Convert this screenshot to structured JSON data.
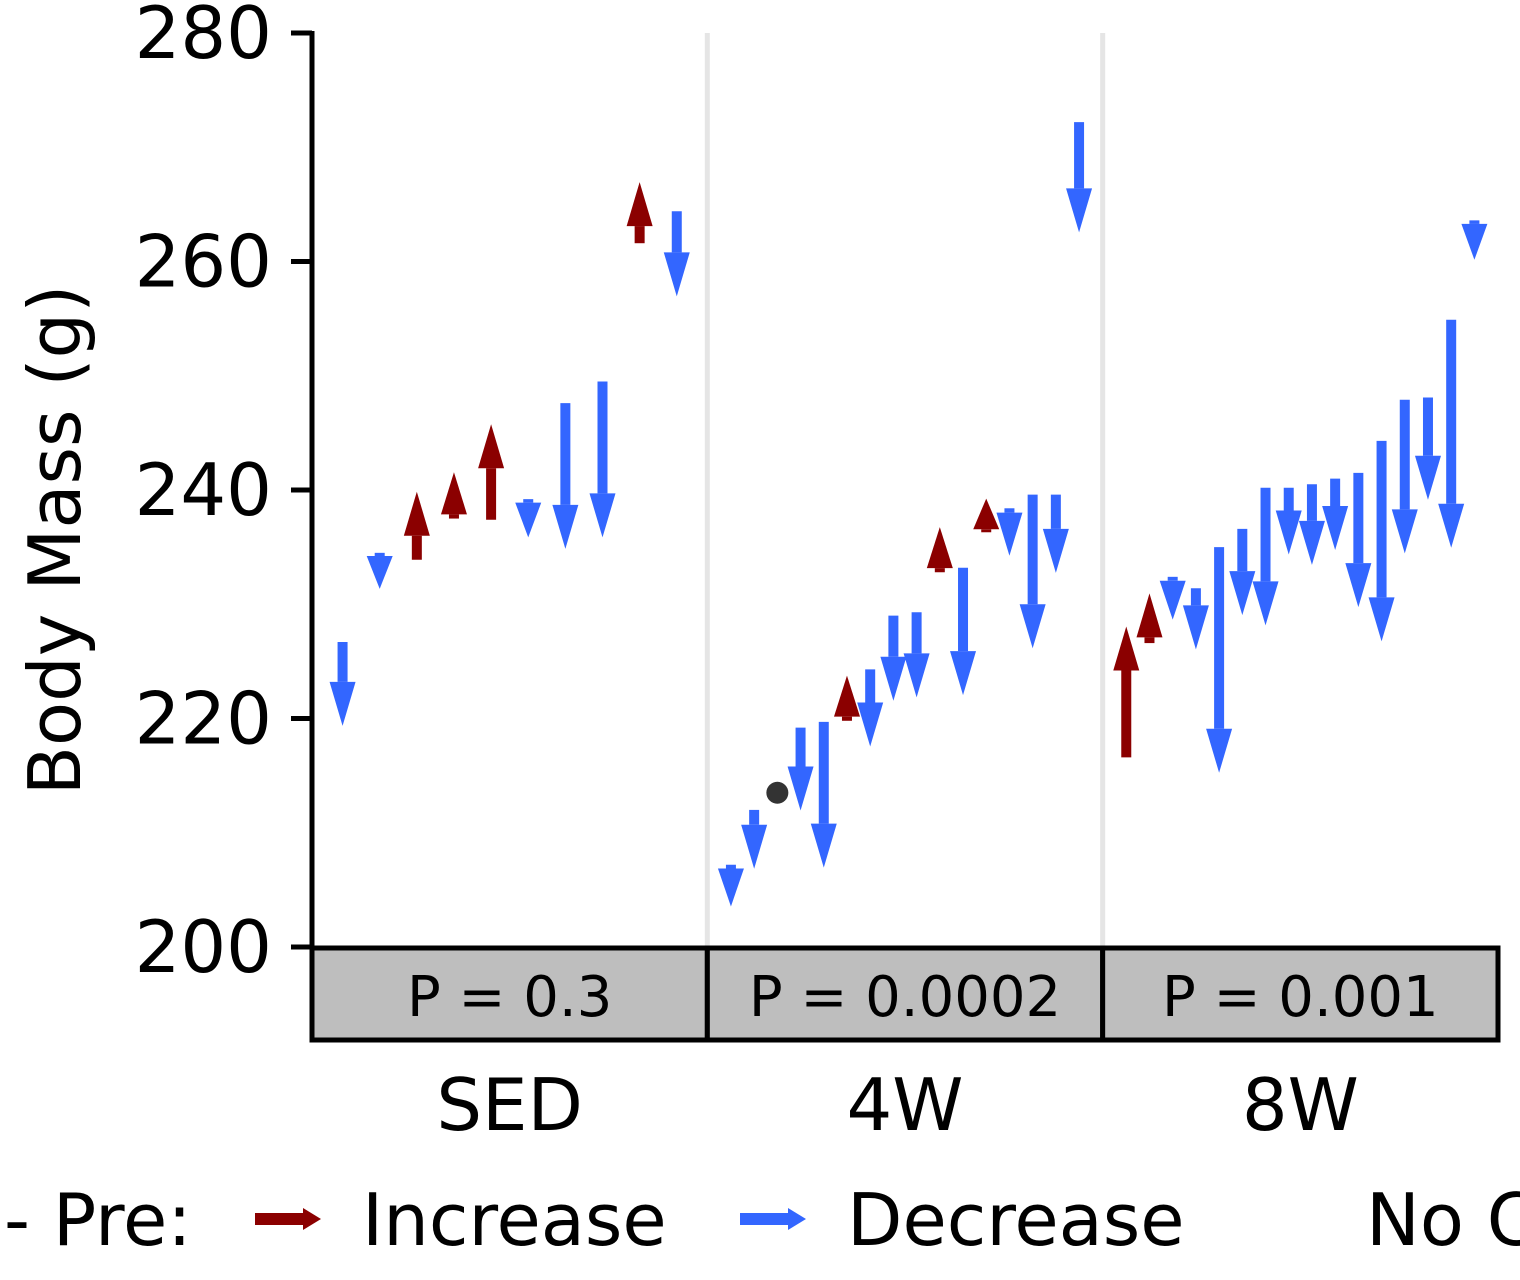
{
  "chart_data": {
    "type": "arrow-plot",
    "ylabel": "Body Mass (g)",
    "ylim": [
      200,
      280
    ],
    "y_ticks": [
      "200",
      "220",
      "240",
      "260",
      "280"
    ],
    "groups": [
      "SED",
      "4W",
      "8W"
    ],
    "p_values": [
      "P = 0.3",
      "P = 0.0002",
      "P = 0.001"
    ],
    "colors": {
      "increase": "#8b0000",
      "decrease": "#3366ff",
      "no_change": "#333333",
      "strip": "#bebebe",
      "divider": "#e5e5e5"
    },
    "legend": {
      "title": "- Pre:",
      "items": [
        {
          "label": "Increase",
          "color": "#8b0000"
        },
        {
          "label": "Decrease",
          "color": "#3366ff"
        },
        {
          "label": "No C",
          "color": "#333333"
        }
      ],
      "placement": "bottom"
    },
    "series": [
      {
        "group": "SED",
        "points": [
          {
            "pre": 226.7,
            "post": 219.7
          },
          {
            "pre": 234.5,
            "post": 231.7
          },
          {
            "pre": 233.9,
            "post": 239.5
          },
          {
            "pre": 237.5,
            "post": 241.2
          },
          {
            "pre": 237.4,
            "post": 245.4
          },
          {
            "pre": 239.2,
            "post": 236.2
          },
          {
            "pre": 247.6,
            "post": 235.2
          },
          {
            "pre": 249.5,
            "post": 236.2
          },
          {
            "pre": 261.6,
            "post": 266.6
          },
          {
            "pre": 264.4,
            "post": 257.3
          }
        ]
      },
      {
        "group": "4W",
        "points": [
          {
            "pre": 207.2,
            "post": 203.9
          },
          {
            "pre": 212.0,
            "post": 207.2
          },
          {
            "pre": 213.5,
            "post": 213.5
          },
          {
            "pre": 219.2,
            "post": 212.3
          },
          {
            "pre": 219.7,
            "post": 207.3
          },
          {
            "pre": 219.8,
            "post": 223.4
          },
          {
            "pre": 224.3,
            "post": 217.9
          },
          {
            "pre": 229.0,
            "post": 221.9
          },
          {
            "pre": 229.3,
            "post": 222.2
          },
          {
            "pre": 232.8,
            "post": 236.4
          },
          {
            "pre": 233.2,
            "post": 222.4
          },
          {
            "pre": 236.3,
            "post": 238.9
          },
          {
            "pre": 238.4,
            "post": 234.6
          },
          {
            "pre": 239.6,
            "post": 226.5
          },
          {
            "pre": 239.6,
            "post": 233.1
          },
          {
            "pre": 272.2,
            "post": 262.9
          }
        ]
      },
      {
        "group": "8W",
        "points": [
          {
            "pre": 216.6,
            "post": 227.7
          },
          {
            "pre": 226.6,
            "post": 230.6
          },
          {
            "pre": 232.4,
            "post": 229.0
          },
          {
            "pre": 231.4,
            "post": 226.4
          },
          {
            "pre": 235.0,
            "post": 215.6
          },
          {
            "pre": 236.6,
            "post": 229.4
          },
          {
            "pre": 240.2,
            "post": 228.5
          },
          {
            "pre": 240.2,
            "post": 234.7
          },
          {
            "pre": 240.5,
            "post": 233.8
          },
          {
            "pre": 241.0,
            "post": 235.1
          },
          {
            "pre": 241.5,
            "post": 230.1
          },
          {
            "pre": 244.3,
            "post": 227.1
          },
          {
            "pre": 247.9,
            "post": 234.8
          },
          {
            "pre": 248.1,
            "post": 239.5
          },
          {
            "pre": 254.9,
            "post": 235.3
          },
          {
            "pre": 263.6,
            "post": 260.5
          }
        ]
      }
    ]
  }
}
